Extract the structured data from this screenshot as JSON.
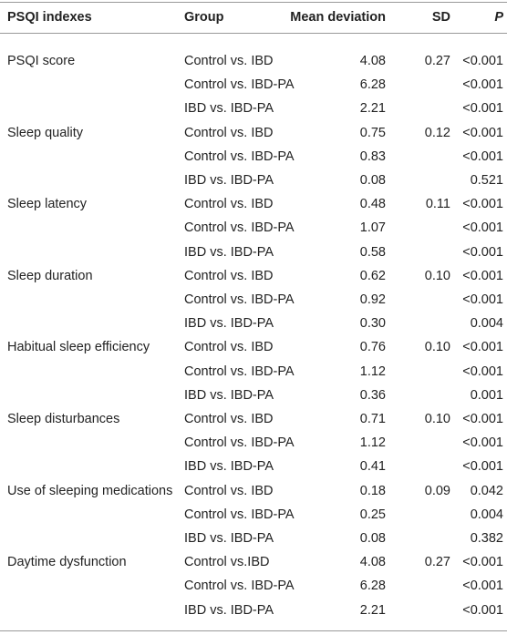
{
  "table": {
    "header": [
      "PSQI indexes",
      "Group",
      "Mean deviation",
      "SD",
      "P"
    ],
    "groups": [
      {
        "index": "PSQI score",
        "rows": [
          {
            "group": "Control vs. IBD",
            "mean": "4.08",
            "sd": "0.27",
            "p": "<0.001"
          },
          {
            "group": "Control vs. IBD-PA",
            "mean": "6.28",
            "p": "<0.001"
          },
          {
            "group": "IBD vs. IBD-PA",
            "mean": "2.21",
            "p": "<0.001"
          }
        ]
      },
      {
        "index": "Sleep quality",
        "rows": [
          {
            "group": "Control vs. IBD",
            "mean": "0.75",
            "sd": "0.12",
            "p": "<0.001"
          },
          {
            "group": "Control vs. IBD-PA",
            "mean": "0.83",
            "p": "<0.001"
          },
          {
            "group": "IBD vs. IBD-PA",
            "mean": "0.08",
            "p": "0.521"
          }
        ]
      },
      {
        "index": "Sleep latency",
        "rows": [
          {
            "group": "Control vs. IBD",
            "mean": "0.48",
            "sd": "0.11",
            "p": "<0.001"
          },
          {
            "group": "Control vs. IBD-PA",
            "mean": "1.07",
            "p": "<0.001"
          },
          {
            "group": "IBD vs. IBD-PA",
            "mean": "0.58",
            "p": "<0.001"
          }
        ]
      },
      {
        "index": "Sleep duration",
        "rows": [
          {
            "group": "Control vs. IBD",
            "mean": "0.62",
            "sd": "0.10",
            "p": "<0.001"
          },
          {
            "group": "Control vs. IBD-PA",
            "mean": "0.92",
            "p": "<0.001"
          },
          {
            "group": "IBD vs. IBD-PA",
            "mean": "0.30",
            "p": "0.004"
          }
        ]
      },
      {
        "index": "Habitual sleep efficiency",
        "rows": [
          {
            "group": "Control vs. IBD",
            "mean": "0.76",
            "sd": "0.10",
            "p": "<0.001"
          },
          {
            "group": "Control vs. IBD-PA",
            "mean": "1.12",
            "p": "<0.001"
          },
          {
            "group": "IBD vs. IBD-PA",
            "mean": "0.36",
            "p": "0.001"
          }
        ]
      },
      {
        "index": "Sleep disturbances",
        "rows": [
          {
            "group": "Control vs. IBD",
            "mean": "0.71",
            "sd": "0.10",
            "p": "<0.001"
          },
          {
            "group": "Control vs. IBD-PA",
            "mean": "1.12",
            "p": "<0.001"
          },
          {
            "group": "IBD vs. IBD-PA",
            "mean": "0.41",
            "p": "<0.001"
          }
        ]
      },
      {
        "index": "Use of sleeping medications",
        "rows": [
          {
            "group": "Control vs. IBD",
            "mean": "0.18",
            "sd": "0.09",
            "p": "0.042"
          },
          {
            "group": "Control vs. IBD-PA",
            "mean": "0.25",
            "p": "0.004"
          },
          {
            "group": "IBD vs. IBD-PA",
            "mean": "0.08",
            "p": "0.382"
          }
        ]
      },
      {
        "index": "Daytime dysfunction",
        "rows": [
          {
            "group": "Control vs.IBD",
            "mean": "4.08",
            "sd": "0.27",
            "p": "<0.001"
          },
          {
            "group": "Control vs. IBD-PA",
            "mean": "6.28",
            "p": "<0.001"
          },
          {
            "group": "IBD vs. IBD-PA",
            "mean": "2.21",
            "p": "<0.001"
          }
        ]
      }
    ]
  }
}
